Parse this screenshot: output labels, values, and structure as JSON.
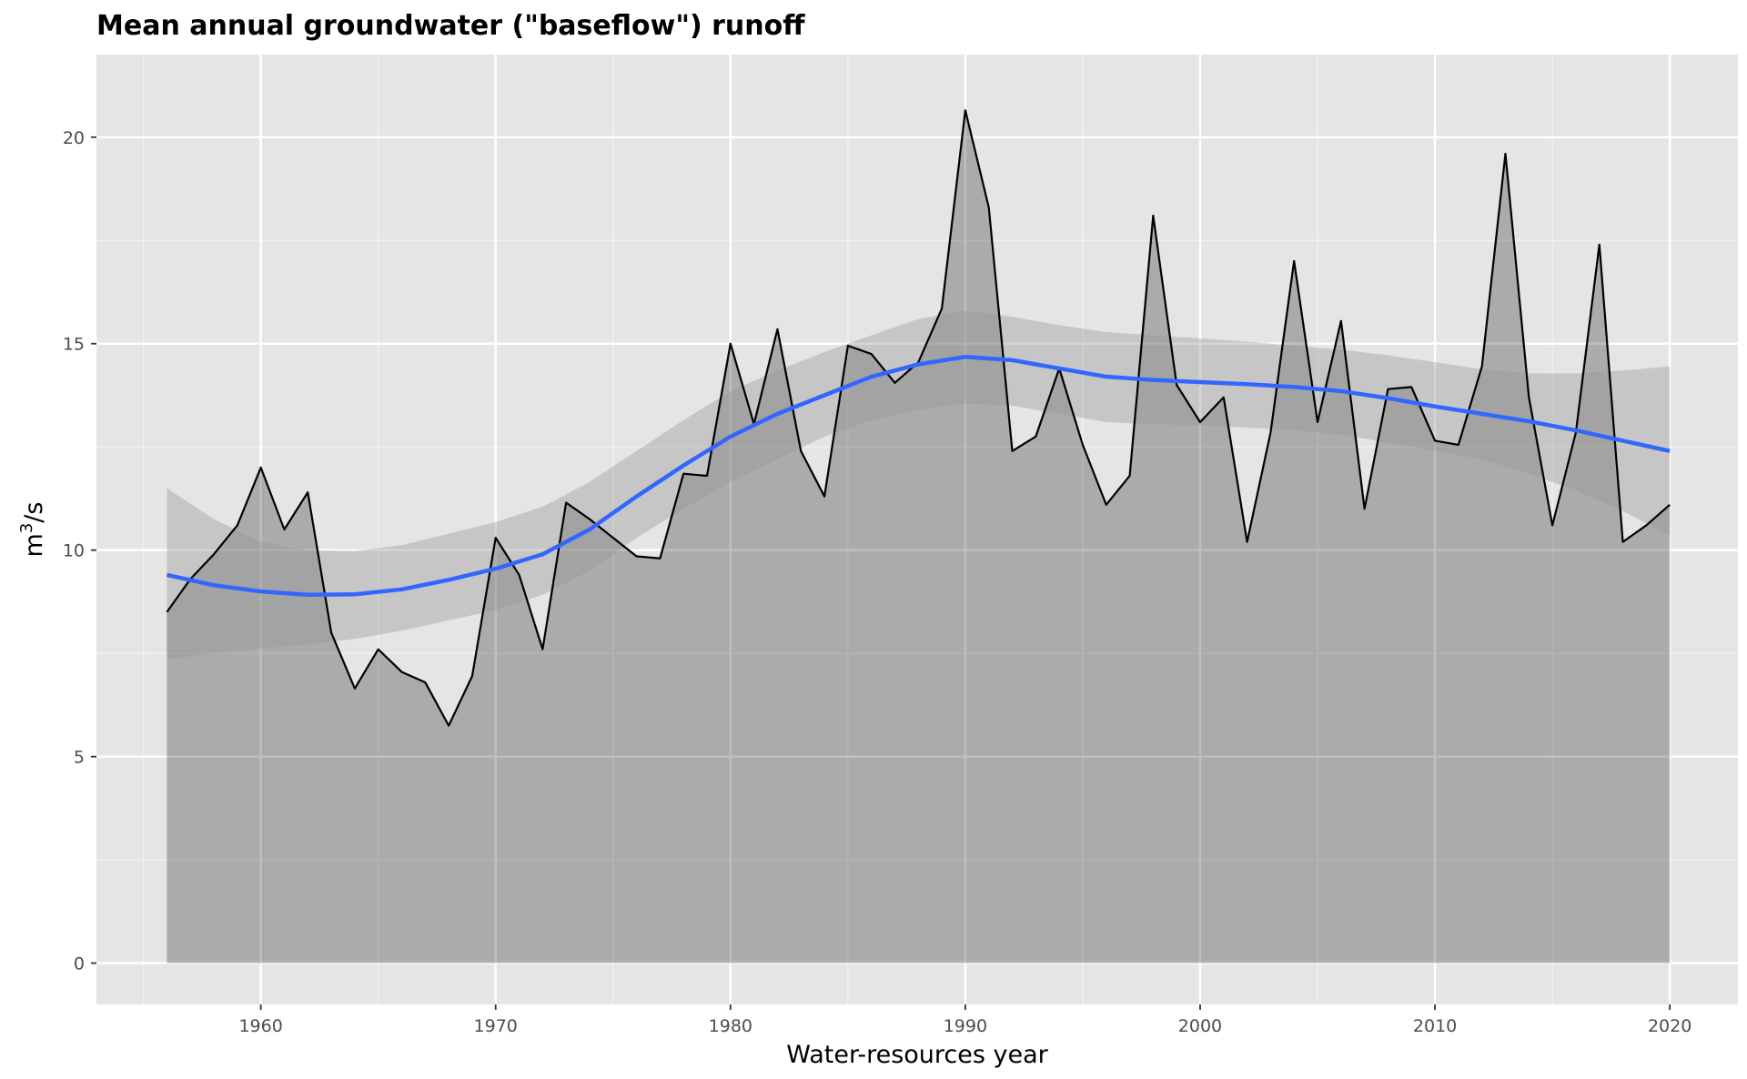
{
  "chart_data": {
    "type": "area",
    "title": "Mean annual groundwater (\"baseflow\") runoff",
    "xlabel": "Water-resources year",
    "ylabel": {
      "base": "m",
      "sup": "3",
      "rest": "/s"
    },
    "xlim": [
      1953.0,
      2022.9
    ],
    "ylim": [
      -1.0,
      22.0
    ],
    "x_ticks": [
      1960,
      1970,
      1980,
      1990,
      2000,
      2010,
      2020
    ],
    "y_ticks": [
      0,
      5,
      10,
      15,
      20
    ],
    "grid": true,
    "series": [
      {
        "x": [
          1956,
          1957,
          1958,
          1959,
          1960,
          1961,
          1962,
          1963,
          1964,
          1965,
          1966,
          1967,
          1968,
          1969,
          1970,
          1971,
          1972,
          1973,
          1974,
          1975,
          1976,
          1977,
          1978,
          1979,
          1980,
          1981,
          1982,
          1983,
          1984,
          1985,
          1986,
          1987,
          1988,
          1989,
          1990,
          1991,
          1992,
          1993,
          1994,
          1995,
          1996,
          1997,
          1998,
          1999,
          2000,
          2001,
          2002,
          2003,
          2004,
          2005,
          2006,
          2007,
          2008,
          2009,
          2010,
          2011,
          2012,
          2013,
          2014,
          2015,
          2016,
          2017,
          2018,
          2019,
          2020
        ],
        "values": [
          8.5,
          9.3,
          9.9,
          10.6,
          12.0,
          10.5,
          11.4,
          8.0,
          6.65,
          7.6,
          7.05,
          6.8,
          5.75,
          6.95,
          10.3,
          9.4,
          7.6,
          11.15,
          10.75,
          10.3,
          9.85,
          9.8,
          11.85,
          11.8,
          15.0,
          13.05,
          15.35,
          12.4,
          11.3,
          14.95,
          14.75,
          14.05,
          14.55,
          15.85,
          20.65,
          18.3,
          12.4,
          12.75,
          14.4,
          12.55,
          11.1,
          11.8,
          18.1,
          14.0,
          13.1,
          13.7,
          10.2,
          12.85,
          17.0,
          13.1,
          15.55,
          11.0,
          13.9,
          13.95,
          12.65,
          12.55,
          14.45,
          19.6,
          13.7,
          10.6,
          12.85,
          17.4,
          10.2,
          10.6,
          11.1
        ]
      },
      {
        "type": "smooth",
        "color": "#3366ff",
        "x": [
          1956,
          1958,
          1960,
          1962,
          1964,
          1966,
          1968,
          1970,
          1972,
          1974,
          1976,
          1978,
          1980,
          1982,
          1984,
          1986,
          1988,
          1990,
          1992,
          1994,
          1996,
          1998,
          2000,
          2002,
          2004,
          2006,
          2008,
          2010,
          2012,
          2014,
          2016,
          2018,
          2020
        ],
        "values": [
          9.4,
          9.15,
          9.0,
          8.92,
          8.93,
          9.05,
          9.28,
          9.55,
          9.9,
          10.5,
          11.3,
          12.05,
          12.75,
          13.3,
          13.75,
          14.2,
          14.5,
          14.68,
          14.6,
          14.4,
          14.2,
          14.12,
          14.07,
          14.02,
          13.95,
          13.85,
          13.68,
          13.48,
          13.3,
          13.12,
          12.9,
          12.65,
          12.4
        ],
        "ci_lower": [
          7.35,
          7.5,
          7.62,
          7.72,
          7.85,
          8.05,
          8.3,
          8.55,
          8.92,
          9.5,
          10.3,
          11.0,
          11.65,
          12.2,
          12.75,
          13.15,
          13.4,
          13.55,
          13.5,
          13.3,
          13.1,
          13.05,
          13.02,
          12.97,
          12.9,
          12.8,
          12.6,
          12.4,
          12.2,
          11.85,
          11.45,
          10.95,
          10.35
        ],
        "ci_upper": [
          11.5,
          10.75,
          10.2,
          10.0,
          9.98,
          10.12,
          10.4,
          10.68,
          11.05,
          11.65,
          12.4,
          13.15,
          13.85,
          14.35,
          14.8,
          15.2,
          15.6,
          15.8,
          15.65,
          15.45,
          15.28,
          15.2,
          15.13,
          15.05,
          14.95,
          14.85,
          14.72,
          14.55,
          14.38,
          14.28,
          14.28,
          14.35,
          14.45
        ]
      }
    ]
  }
}
